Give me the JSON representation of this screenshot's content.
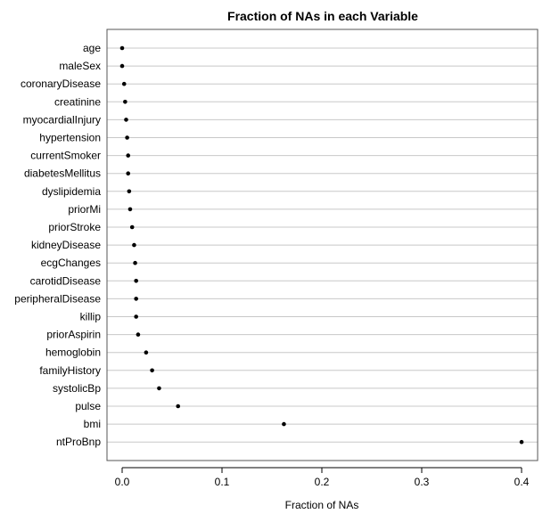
{
  "chart_data": {
    "type": "scatter",
    "subtype": "dotplot",
    "title": "Fraction of NAs in each Variable",
    "xlabel": "Fraction of NAs",
    "ylabel": "",
    "xlim": [
      0,
      0.4
    ],
    "xticks": [
      0.0,
      0.1,
      0.2,
      0.3,
      0.4
    ],
    "xtick_labels": [
      "0.0",
      "0.1",
      "0.2",
      "0.3",
      "0.4"
    ],
    "grid": true,
    "categories": [
      "age",
      "maleSex",
      "coronaryDisease",
      "creatinine",
      "myocardialInjury",
      "hypertension",
      "currentSmoker",
      "diabetesMellitus",
      "dyslipidemia",
      "priorMi",
      "priorStroke",
      "kidneyDisease",
      "ecgChanges",
      "carotidDisease",
      "peripheralDisease",
      "killip",
      "priorAspirin",
      "hemoglobin",
      "familyHistory",
      "systolicBp",
      "pulse",
      "bmi",
      "ntProBnp"
    ],
    "values": [
      0.0,
      0.0,
      0.002,
      0.003,
      0.004,
      0.005,
      0.006,
      0.006,
      0.007,
      0.008,
      0.01,
      0.012,
      0.013,
      0.014,
      0.014,
      0.014,
      0.016,
      0.024,
      0.03,
      0.037,
      0.056,
      0.162,
      0.4
    ],
    "colors": {
      "point": "#000000",
      "grid": "#c8c8c8",
      "border": "#555555"
    }
  }
}
